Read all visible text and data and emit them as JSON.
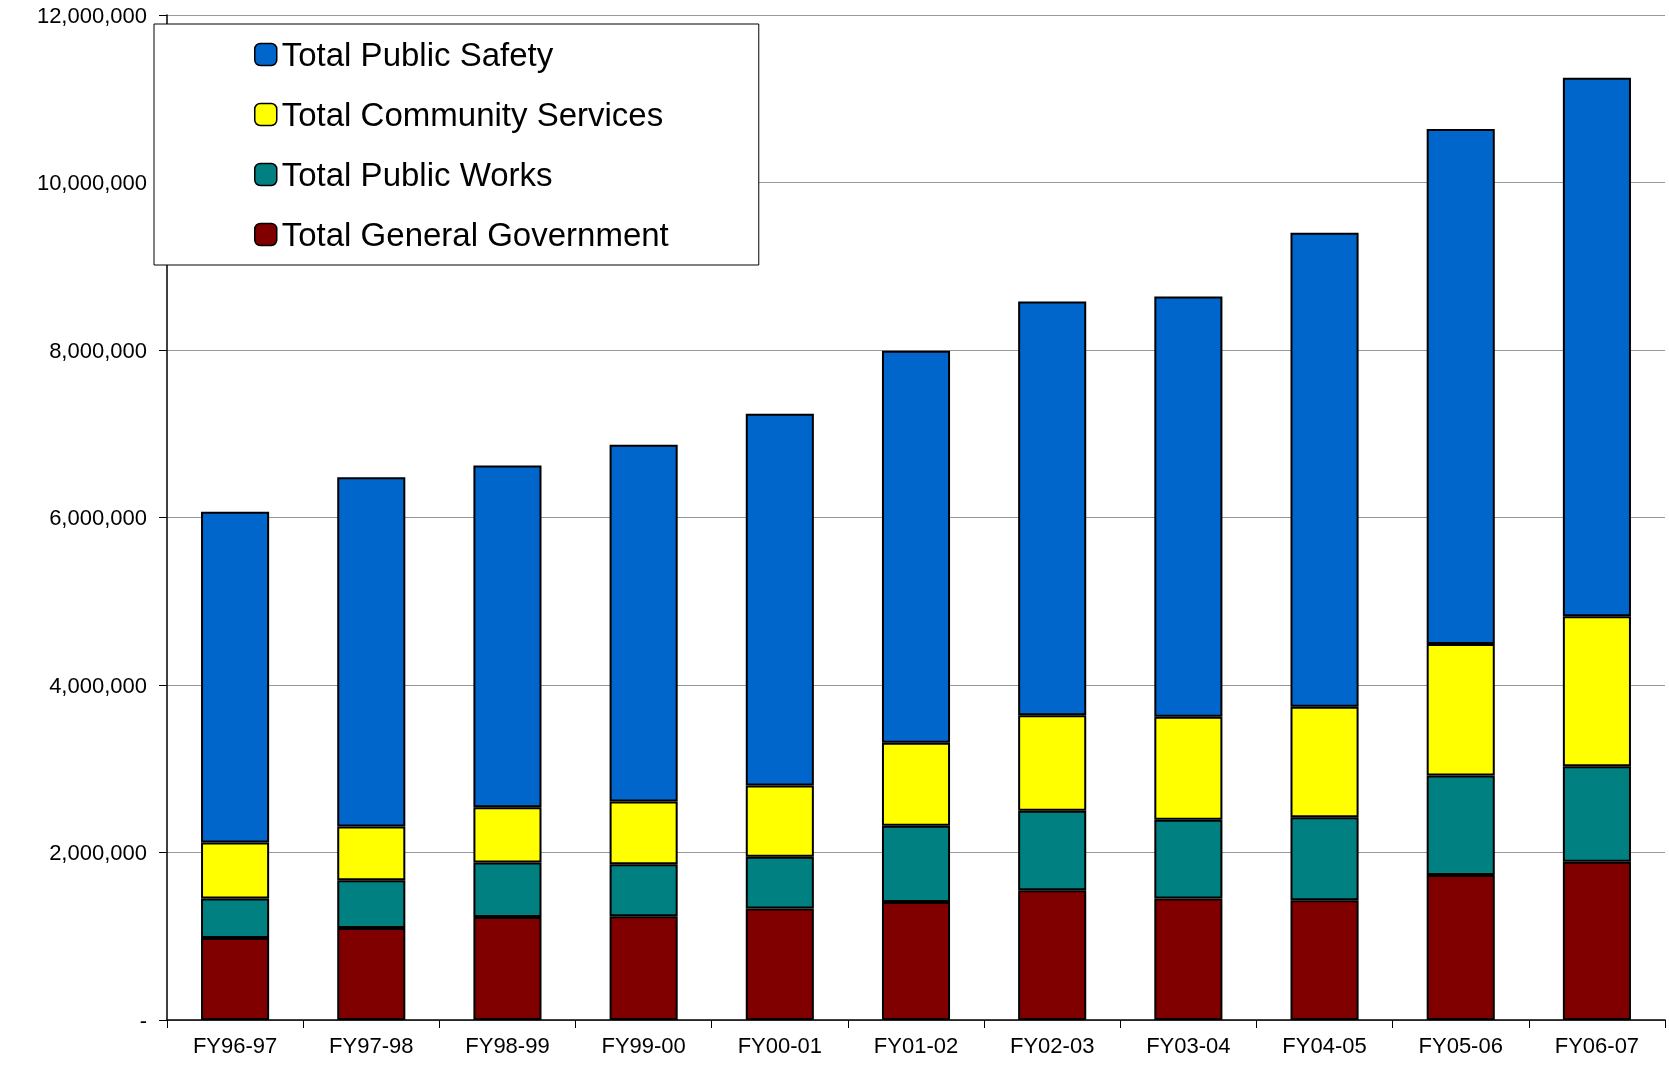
{
  "chart_data": {
    "type": "bar",
    "stacked": true,
    "legend": "top left",
    "grid": "y",
    "categories": [
      "FY96-97",
      "FY97-98",
      "FY98-99",
      "FY99-00",
      "FY00-01",
      "FY01-02",
      "FY02-03",
      "FY03-04",
      "FY04-05",
      "FY05-06",
      "FY06-07"
    ],
    "series": [
      {
        "name": "Total General Government",
        "color": "#800000",
        "values": [
          980000,
          1100000,
          1230000,
          1240000,
          1330000,
          1410000,
          1550000,
          1450000,
          1430000,
          1730000,
          1890000
        ]
      },
      {
        "name": "Total Public Works",
        "color": "#008080",
        "values": [
          470000,
          570000,
          650000,
          620000,
          620000,
          910000,
          950000,
          940000,
          990000,
          1190000,
          1140000
        ]
      },
      {
        "name": "Total Community Services",
        "color": "#ffff00",
        "values": [
          670000,
          640000,
          660000,
          750000,
          850000,
          990000,
          1140000,
          1230000,
          1320000,
          1570000,
          1790000
        ]
      },
      {
        "name": "Total Public Safety",
        "color": "#0066cc",
        "values": [
          3950000,
          4170000,
          4080000,
          4260000,
          4440000,
          4680000,
          4940000,
          5020000,
          5660000,
          6150000,
          6430000
        ]
      }
    ],
    "ylim": [
      0,
      12000000
    ],
    "yticks": [
      {
        "value": 0,
        "label": "-"
      },
      {
        "value": 2000000,
        "label": "2,000,000"
      },
      {
        "value": 4000000,
        "label": "4,000,000"
      },
      {
        "value": 6000000,
        "label": "6,000,000"
      },
      {
        "value": 8000000,
        "label": "8,000,000"
      },
      {
        "value": 10000000,
        "label": "10,000,000"
      },
      {
        "value": 12000000,
        "label": "12,000,000"
      }
    ]
  }
}
